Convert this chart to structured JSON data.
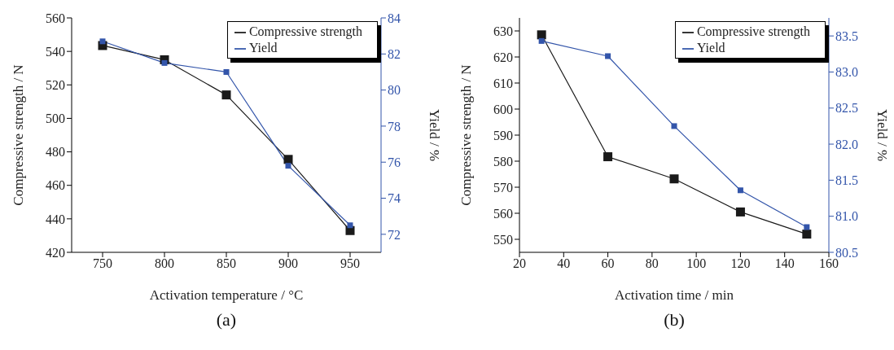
{
  "chart_data": [
    {
      "type": "line",
      "xlabel": "Activation temperature / °C",
      "ylabel": "Compressive strength / N",
      "y2label": "Yield / %",
      "annotations": [
        "(a)"
      ],
      "x": [
        750,
        800,
        850,
        900,
        950
      ],
      "xlim": [
        725,
        975
      ],
      "xticks": [
        750,
        800,
        850,
        900,
        950
      ],
      "ylim": [
        420,
        560
      ],
      "yticks": [
        420,
        440,
        460,
        480,
        500,
        520,
        540,
        560
      ],
      "y2lim": [
        71,
        84
      ],
      "y2ticks": [
        72,
        74,
        76,
        78,
        80,
        82,
        84
      ],
      "marker": "square",
      "legend": "top right",
      "grid": false,
      "series": [
        {
          "name": "Compressive strength",
          "color": "#1a1a1a",
          "values": [
            543.5,
            535,
            514,
            475.5,
            433
          ]
        },
        {
          "name": "Yield",
          "color": "#3355aa",
          "axis": "y2",
          "values": [
            82.7,
            81.5,
            81.0,
            75.8,
            72.5
          ]
        }
      ]
    },
    {
      "type": "line",
      "xlabel": "Activation time / min",
      "ylabel": "Compressive strength / N",
      "y2label": "Yield / %",
      "annotations": [
        "(b)"
      ],
      "x": [
        30,
        60,
        90,
        120,
        150
      ],
      "xlim": [
        20,
        160
      ],
      "xticks": [
        20,
        40,
        60,
        80,
        100,
        120,
        140,
        160
      ],
      "ylim": [
        545,
        635
      ],
      "yticks": [
        550,
        560,
        570,
        580,
        590,
        600,
        610,
        620,
        630
      ],
      "y2lim": [
        80.5,
        83.75
      ],
      "y2ticks": [
        {
          "value": 80.5,
          "label": "80.5"
        },
        {
          "value": 81,
          "label": "81.0"
        },
        {
          "value": 81.5,
          "label": "81.5"
        },
        {
          "value": 82,
          "label": "82.0"
        },
        {
          "value": 82.5,
          "label": "82.5"
        },
        {
          "value": 83,
          "label": "83.0"
        },
        {
          "value": 83.5,
          "label": "83.5"
        }
      ],
      "marker": "square",
      "legend": "top right",
      "grid": false,
      "series": [
        {
          "name": "Compressive strength",
          "color": "#1a1a1a",
          "values": [
            628.5,
            581.7,
            573.2,
            560.5,
            552
          ]
        },
        {
          "name": "Yield",
          "color": "#3355aa",
          "axis": "y2",
          "values": [
            83.43,
            83.22,
            82.25,
            81.36,
            80.85
          ]
        }
      ]
    }
  ]
}
